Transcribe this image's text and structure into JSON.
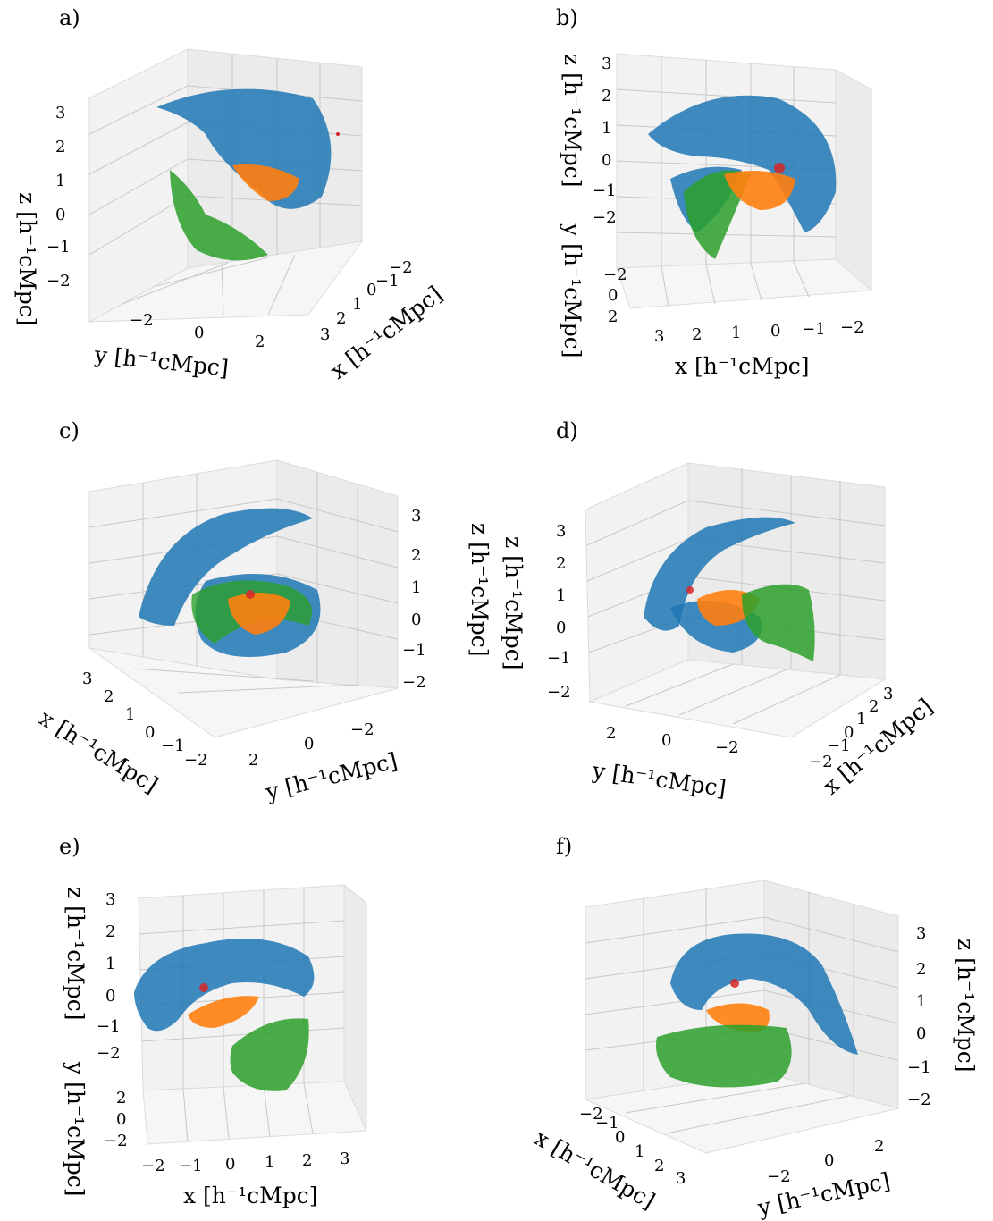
{
  "colors": {
    "blue": "#1f77b4",
    "orange": "#ff7f0e",
    "green": "#2ca02c",
    "red": "#d62728",
    "pane": "#f2f2f2",
    "grid": "#c8c8c8"
  },
  "chart_data": [
    {
      "panel": "a)",
      "type": "scatter3d",
      "xlabel": "x  [h⁻¹cMpc]",
      "ylabel": "y  [h⁻¹cMpc]",
      "zlabel": "z  [h⁻¹cMpc]",
      "xticks": [
        "3",
        "2",
        "1",
        "0",
        "−1",
        "−2"
      ],
      "yticks": [
        "−2",
        "0",
        "2"
      ],
      "zticks": [
        "3",
        "2",
        "1",
        "0",
        "−1",
        "−2"
      ],
      "xlim": [
        -2,
        3
      ],
      "ylim": [
        -3,
        3
      ],
      "zlim": [
        -2,
        3
      ]
    },
    {
      "panel": "b)",
      "type": "scatter3d",
      "xlabel": "x  [h⁻¹cMpc]",
      "ylabel": "y  [h⁻¹cMpc]",
      "zlabel": "z  [h⁻¹cMpc]",
      "xticks": [
        "3",
        "2",
        "1",
        "0",
        "−1",
        "−2"
      ],
      "yticks": [
        "−2",
        "0",
        "2"
      ],
      "zticks": [
        "3",
        "2",
        "1",
        "0",
        "−1",
        "−2"
      ],
      "xlim": [
        -2,
        3
      ],
      "ylim": [
        -3,
        3
      ],
      "zlim": [
        -2,
        3
      ]
    },
    {
      "panel": "c)",
      "type": "scatter3d",
      "xlabel": "x  [h⁻¹cMpc]",
      "ylabel": "y  [h⁻¹cMpc]",
      "zlabel": "z  [h⁻¹cMpc]",
      "xticks": [
        "3",
        "2",
        "1",
        "0",
        "−1",
        "−2"
      ],
      "yticks": [
        "2",
        "0",
        "−2"
      ],
      "zticks": [
        "3",
        "2",
        "1",
        "0",
        "−1",
        "−2"
      ],
      "xlim": [
        -2,
        3
      ],
      "ylim": [
        -3,
        3
      ],
      "zlim": [
        -2,
        3
      ]
    },
    {
      "panel": "d)",
      "type": "scatter3d",
      "xlabel": "x  [h⁻¹cMpc]",
      "ylabel": "y  [h⁻¹cMpc]",
      "zlabel": "z  [h⁻¹cMpc]",
      "xticks": [
        "−2",
        "−1",
        "0",
        "1",
        "2",
        "3"
      ],
      "yticks": [
        "2",
        "0",
        "−2"
      ],
      "zticks": [
        "3",
        "2",
        "1",
        "0",
        "−1",
        "−2"
      ],
      "xlim": [
        -2,
        3
      ],
      "ylim": [
        -3,
        3
      ],
      "zlim": [
        -2,
        3
      ]
    },
    {
      "panel": "e)",
      "type": "scatter3d",
      "xlabel": "x  [h⁻¹cMpc]",
      "ylabel": "y  [h⁻¹cMpc]",
      "zlabel": "z  [h⁻¹cMpc]",
      "xticks": [
        "−2",
        "−1",
        "0",
        "1",
        "2",
        "3"
      ],
      "yticks": [
        "2",
        "0",
        "−2"
      ],
      "zticks": [
        "3",
        "2",
        "1",
        "0",
        "−1",
        "−2"
      ],
      "xlim": [
        -2,
        3
      ],
      "ylim": [
        -3,
        3
      ],
      "zlim": [
        -2,
        3
      ]
    },
    {
      "panel": "f)",
      "type": "scatter3d",
      "xlabel": "x  [h⁻¹cMpc]",
      "ylabel": "y  [h⁻¹cMpc]",
      "zlabel": "z  [h⁻¹cMpc]",
      "xticks": [
        "−2",
        "−1",
        "0",
        "1",
        "2",
        "3"
      ],
      "yticks": [
        "−2",
        "0",
        "2"
      ],
      "zticks": [
        "3",
        "2",
        "1",
        "0",
        "−1",
        "−2"
      ],
      "xlim": [
        -2,
        3
      ],
      "ylim": [
        -3,
        3
      ],
      "zlim": [
        -2,
        3
      ]
    }
  ]
}
